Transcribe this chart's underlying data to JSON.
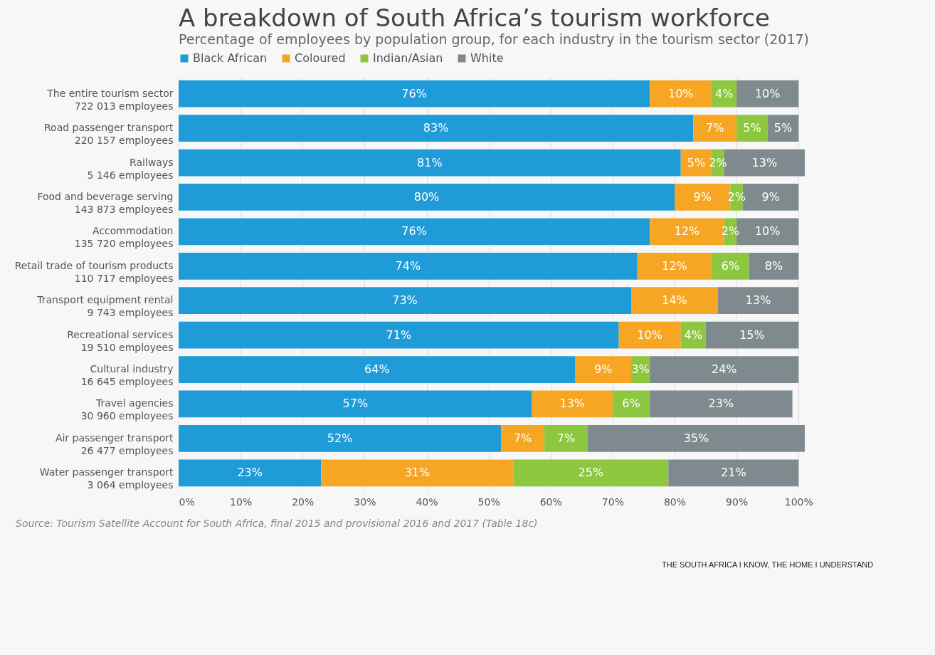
{
  "chart_data": {
    "type": "bar",
    "orientation": "horizontal",
    "stacked": true,
    "title": "A breakdown of South Africa’s tourism workforce",
    "subtitle": "Percentage of employees by population group, for each industry in the tourism sector (2017)",
    "categories": [
      "The entire tourism sector\n722 013 employees",
      "Road passenger transport\n220 157 employees",
      "Railways\n5 146 employees",
      "Food and beverage serving\n143 873 employees",
      "Accommodation\n135 720 employees",
      "Retail trade of tourism products\n110 717 employees",
      "Transport equipment rental\n9 743 employees",
      "Recreational services\n19 510 employees",
      "Cultural industry\n16 645 employees",
      "Travel agencies\n30 960 employees",
      "Air passenger transport\n26 477 employees",
      "Water passenger transport\n3 064 employees"
    ],
    "series": [
      {
        "name": "Black African",
        "color": "#1f9bd7",
        "values": [
          76,
          83,
          81,
          80,
          76,
          74,
          73,
          71,
          64,
          57,
          52,
          23
        ],
        "value_labels": [
          "76%",
          "83%",
          "81%",
          "80%",
          "76%",
          "74%",
          "73%",
          "71%",
          "64%",
          "57%",
          "52%",
          "23%"
        ]
      },
      {
        "name": "Coloured",
        "color": "#f6a623",
        "values": [
          10,
          7,
          5,
          9,
          12,
          12,
          14,
          10,
          9,
          13,
          7,
          31
        ],
        "value_labels": [
          "10%",
          "7%",
          "5%",
          "9%",
          "12%",
          "12%",
          "14%",
          "10%",
          "9%",
          "13%",
          "7%",
          "31%"
        ]
      },
      {
        "name": "Indian/Asian",
        "color": "#8dc63f",
        "values": [
          4,
          5,
          2,
          2,
          2,
          6,
          null,
          4,
          3,
          6,
          7,
          25
        ],
        "value_labels": [
          "4%",
          "5%",
          "2%",
          "2%",
          "2%",
          "6%",
          null,
          "4%",
          "3%",
          "6%",
          "7%",
          "25%"
        ]
      },
      {
        "name": "White",
        "color": "#7f8a8f",
        "values": [
          10,
          5,
          13,
          9,
          10,
          8,
          13,
          15,
          24,
          23,
          35,
          21
        ],
        "value_labels": [
          "10%",
          "5%",
          "13%",
          "9%",
          "10%",
          "8%",
          "13%",
          "15%",
          "24%",
          "23%",
          "35%",
          "21%"
        ]
      }
    ],
    "xlim": [
      0,
      101
    ],
    "xticks": [
      {
        "value": 0,
        "label": "0%"
      },
      {
        "value": 10,
        "label": "10%"
      },
      {
        "value": 20,
        "label": "20%"
      },
      {
        "value": 30,
        "label": "30%"
      },
      {
        "value": 40,
        "label": "40%"
      },
      {
        "value": 50,
        "label": "50%"
      },
      {
        "value": 60,
        "label": "60%"
      },
      {
        "value": 70,
        "label": "70%"
      },
      {
        "value": 80,
        "label": "80%"
      },
      {
        "value": 90,
        "label": "90%"
      },
      {
        "value": 100,
        "label": "100%"
      }
    ],
    "grid": "x",
    "legend": "top",
    "annotations": [
      "Source: Tourism Satellite Account for South Africa, final 2015 and provisional 2016 and 2017 (Table 18c)",
      "THE SOUTH AFRICA I KNOW, THE HOME I UNDERSTAND"
    ]
  }
}
